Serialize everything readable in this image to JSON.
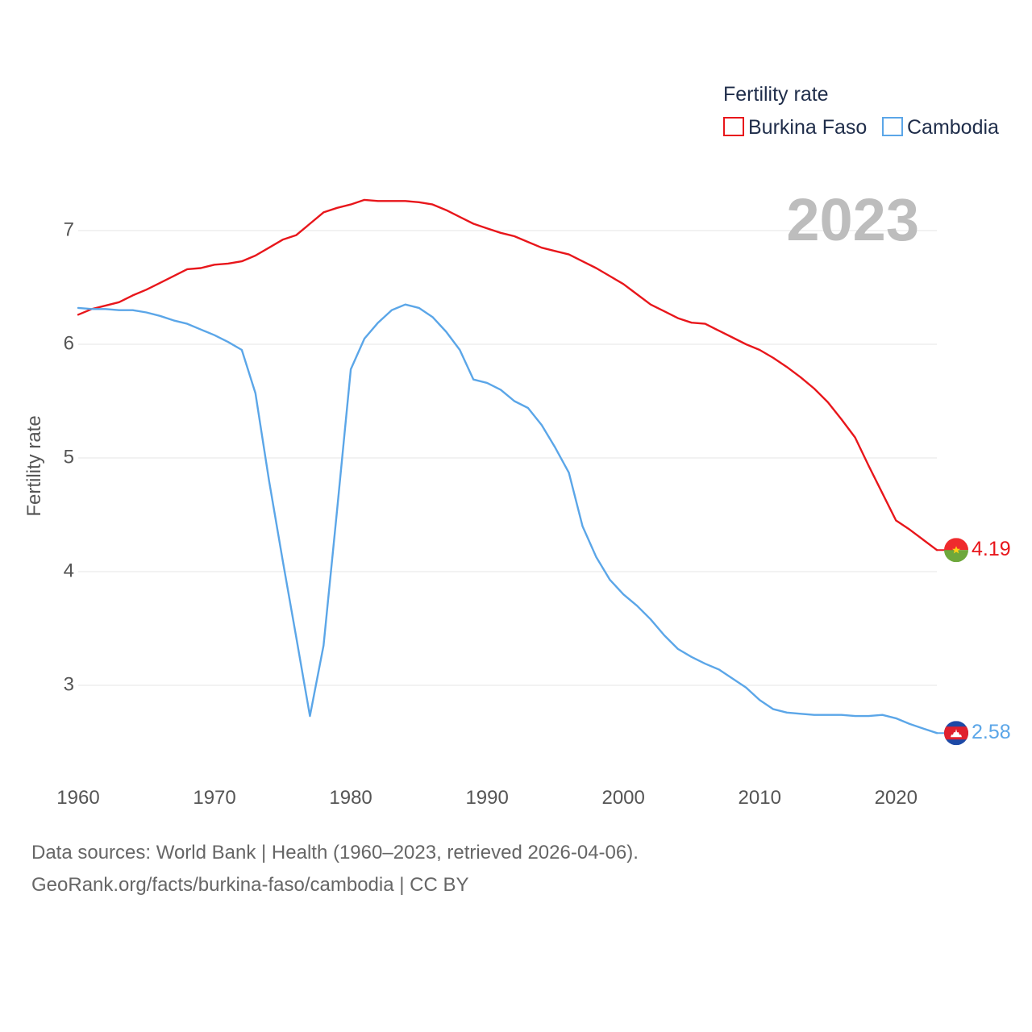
{
  "chart_data": {
    "type": "line",
    "ylabel": "Fertility rate",
    "xlim": [
      1960,
      2023
    ],
    "ylim": [
      2.4,
      7.4
    ],
    "y_ticks": [
      3,
      4,
      5,
      6,
      7
    ],
    "x_ticks": [
      1960,
      1970,
      1980,
      1990,
      2000,
      2010,
      2020
    ],
    "year_label": "2023",
    "legend_title": "Fertility rate",
    "x": [
      1960,
      1961,
      1962,
      1963,
      1964,
      1965,
      1966,
      1967,
      1968,
      1969,
      1970,
      1971,
      1972,
      1973,
      1974,
      1975,
      1976,
      1977,
      1978,
      1979,
      1980,
      1981,
      1982,
      1983,
      1984,
      1985,
      1986,
      1987,
      1988,
      1989,
      1990,
      1991,
      1992,
      1993,
      1994,
      1995,
      1996,
      1997,
      1998,
      1999,
      2000,
      2001,
      2002,
      2003,
      2004,
      2005,
      2006,
      2007,
      2008,
      2009,
      2010,
      2011,
      2012,
      2013,
      2014,
      2015,
      2016,
      2017,
      2018,
      2019,
      2020,
      2021,
      2022,
      2023
    ],
    "series": [
      {
        "name": "Burkina Faso",
        "color": "#e8161b",
        "end_label": "4.19",
        "values": [
          6.26,
          6.31,
          6.34,
          6.37,
          6.43,
          6.48,
          6.54,
          6.6,
          6.66,
          6.67,
          6.7,
          6.71,
          6.73,
          6.78,
          6.85,
          6.92,
          6.96,
          7.06,
          7.16,
          7.2,
          7.23,
          7.27,
          7.26,
          7.26,
          7.26,
          7.25,
          7.23,
          7.18,
          7.12,
          7.06,
          7.02,
          6.98,
          6.95,
          6.9,
          6.85,
          6.82,
          6.79,
          6.73,
          6.67,
          6.6,
          6.53,
          6.44,
          6.35,
          6.29,
          6.23,
          6.19,
          6.18,
          6.12,
          6.06,
          6.0,
          5.95,
          5.88,
          5.8,
          5.71,
          5.61,
          5.49,
          5.34,
          5.18,
          4.93,
          4.69,
          4.45,
          4.37,
          4.28,
          4.19
        ]
      },
      {
        "name": "Cambodia",
        "color": "#5ba6e8",
        "end_label": "2.58",
        "values": [
          6.32,
          6.31,
          6.31,
          6.3,
          6.3,
          6.28,
          6.25,
          6.21,
          6.18,
          6.13,
          6.08,
          6.02,
          5.95,
          5.57,
          4.8,
          4.1,
          3.42,
          2.73,
          3.35,
          4.55,
          5.78,
          6.05,
          6.19,
          6.3,
          6.35,
          6.32,
          6.24,
          6.11,
          5.95,
          5.69,
          5.66,
          5.6,
          5.5,
          5.44,
          5.29,
          5.09,
          4.87,
          4.4,
          4.13,
          3.93,
          3.8,
          3.7,
          3.58,
          3.44,
          3.32,
          3.25,
          3.19,
          3.14,
          3.06,
          2.98,
          2.87,
          2.79,
          2.76,
          2.75,
          2.74,
          2.74,
          2.74,
          2.73,
          2.73,
          2.74,
          2.71,
          2.66,
          2.62,
          2.58
        ]
      }
    ]
  },
  "footer": {
    "line1": "Data sources: World Bank | Health (1960–2023, retrieved 2026-04-06).",
    "line2": "GeoRank.org/facts/burkina-faso/cambodia | CC BY"
  }
}
